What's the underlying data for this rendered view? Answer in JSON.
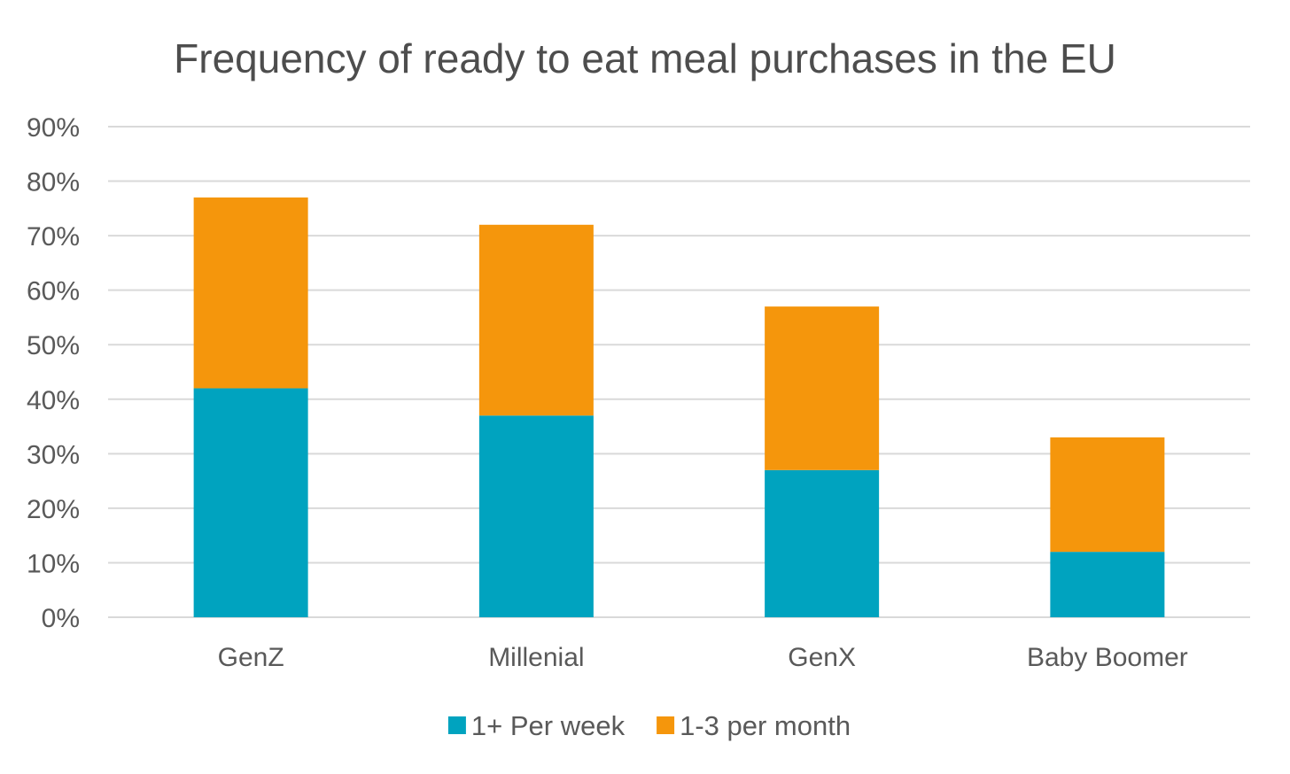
{
  "chart_data": {
    "type": "bar",
    "stacked": true,
    "title": "Frequency of ready to eat meal purchases in the EU",
    "categories": [
      "GenZ",
      "Millenial",
      "GenX",
      "Baby Boomer"
    ],
    "series": [
      {
        "name": "1+ Per week",
        "color": "#00a3bf",
        "values": [
          42,
          37,
          27,
          12
        ]
      },
      {
        "name": "1-3 per month",
        "color": "#f5960c",
        "values": [
          35,
          35,
          30,
          21
        ]
      }
    ],
    "y_ticks": [
      "0%",
      "10%",
      "20%",
      "30%",
      "40%",
      "50%",
      "60%",
      "70%",
      "80%",
      "90%"
    ],
    "ylim": [
      0,
      90
    ],
    "y_unit": "%",
    "grid": true,
    "legend_position": "bottom",
    "colors": {
      "grid": "#d9d9d9",
      "text": "#595959",
      "title": "#4d4d4d"
    }
  }
}
